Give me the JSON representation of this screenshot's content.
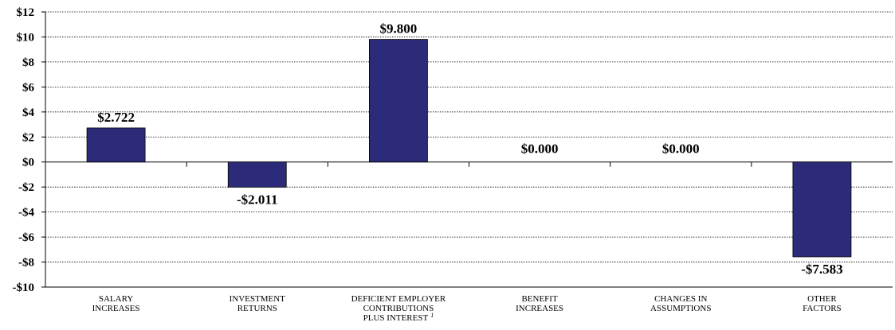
{
  "chart_data": {
    "type": "bar",
    "categories": [
      [
        "SALARY",
        "INCREASES"
      ],
      [
        "INVESTMENT",
        "RETURNS"
      ],
      [
        "DEFICIENT EMPLOYER",
        "CONTRIBUTIONS",
        "PLUS INTEREST"
      ],
      [
        "BENEFIT",
        "INCREASES"
      ],
      [
        "CHANGES IN",
        "ASSUMPTIONS"
      ],
      [
        "OTHER",
        "FACTORS"
      ]
    ],
    "category_footnotes": [
      "",
      "",
      "1",
      "",
      "",
      ""
    ],
    "values": [
      2.722,
      -2.011,
      9.8,
      0.0,
      0.0,
      -7.583
    ],
    "value_labels": [
      "$2.722",
      "-$2.011",
      "$9.800",
      "$0.000",
      "$0.000",
      "-$7.583"
    ],
    "yticks": [
      12,
      10,
      8,
      6,
      4,
      2,
      0,
      -2,
      -4,
      -6,
      -8,
      -10
    ],
    "ytick_labels": [
      "$12",
      "$10",
      "$8",
      "$6",
      "$4",
      "$2",
      "$0",
      "-$2",
      "-$4",
      "-$6",
      "-$8",
      "-$10"
    ],
    "ylim": [
      -10,
      12
    ],
    "bar_color": "#2b2b7a",
    "grid": true,
    "title": "",
    "xlabel": "",
    "ylabel": ""
  }
}
